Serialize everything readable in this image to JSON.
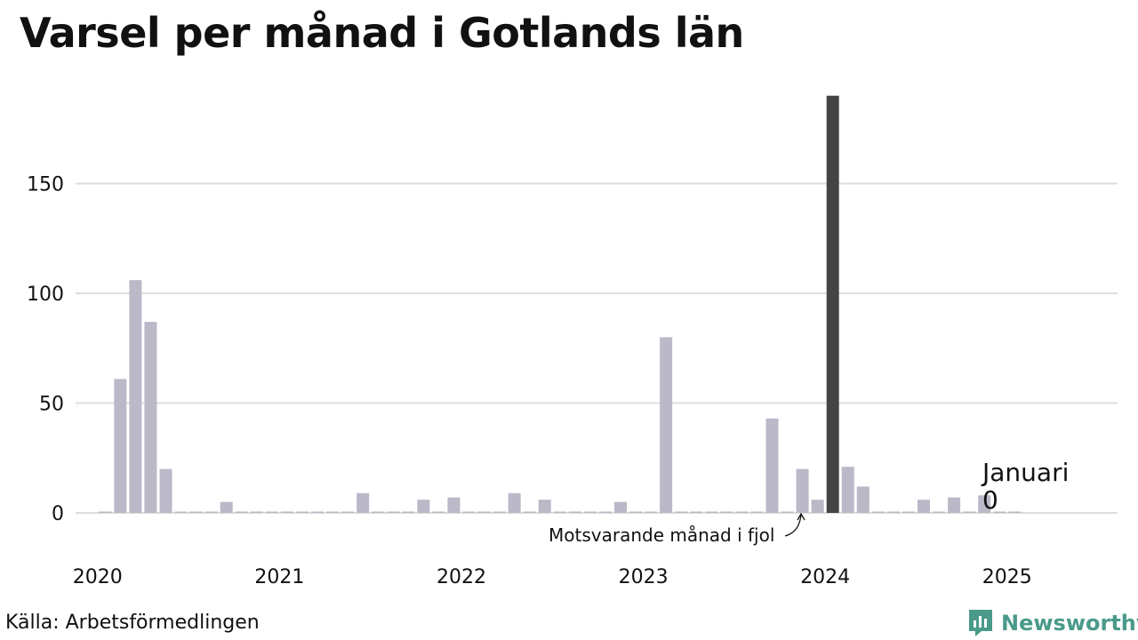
{
  "title": "Varsel per månad i Gotlands län",
  "source": "Källa: Arbetsförmedlingen",
  "logo_text": "Newsworthy",
  "colors": {
    "bar": "#bbb8c8",
    "highlight": "#444444",
    "grid": "#dddddd",
    "logo": "#4a9a8a"
  },
  "chart_data": {
    "type": "bar",
    "title": "Varsel per månad i Gotlands län",
    "xlabel": "",
    "ylabel": "",
    "ylim": [
      0,
      190
    ],
    "yticks": [
      0,
      50,
      100,
      150
    ],
    "xticks": [
      "2020",
      "2021",
      "2022",
      "2023",
      "2024",
      "2025"
    ],
    "grid": true,
    "start": "2020-01",
    "x": [
      "2020-01",
      "2020-02",
      "2020-03",
      "2020-04",
      "2020-05",
      "2020-06",
      "2020-07",
      "2020-08",
      "2020-09",
      "2020-10",
      "2020-11",
      "2020-12",
      "2021-01",
      "2021-02",
      "2021-03",
      "2021-04",
      "2021-05",
      "2021-06",
      "2021-07",
      "2021-08",
      "2021-09",
      "2021-10",
      "2021-11",
      "2021-12",
      "2022-01",
      "2022-02",
      "2022-03",
      "2022-04",
      "2022-05",
      "2022-06",
      "2022-07",
      "2022-08",
      "2022-09",
      "2022-10",
      "2022-11",
      "2022-12",
      "2023-01",
      "2023-02",
      "2023-03",
      "2023-04",
      "2023-05",
      "2023-06",
      "2023-07",
      "2023-08",
      "2023-09",
      "2023-10",
      "2023-11",
      "2023-12",
      "2024-01",
      "2024-02",
      "2024-03",
      "2024-04",
      "2024-05",
      "2024-06",
      "2024-07",
      "2024-08",
      "2024-09",
      "2024-10",
      "2024-11",
      "2024-12",
      "2025-01"
    ],
    "values": [
      0,
      61,
      106,
      87,
      20,
      0,
      0,
      0,
      5,
      0,
      0,
      0,
      0,
      0,
      0,
      0,
      0,
      9,
      0,
      0,
      0,
      6,
      0,
      7,
      0,
      0,
      0,
      9,
      0,
      6,
      0,
      0,
      0,
      0,
      5,
      0,
      0,
      80,
      0,
      0,
      0,
      0,
      0,
      0,
      43,
      0,
      20,
      6,
      190,
      21,
      12,
      0,
      0,
      0,
      6,
      0,
      7,
      0,
      8,
      0,
      0
    ],
    "highlight_index": 48,
    "annotations": {
      "highlight_label": "Motsvarande månad i fjol",
      "current_month": "Januari",
      "current_value": "0"
    }
  }
}
